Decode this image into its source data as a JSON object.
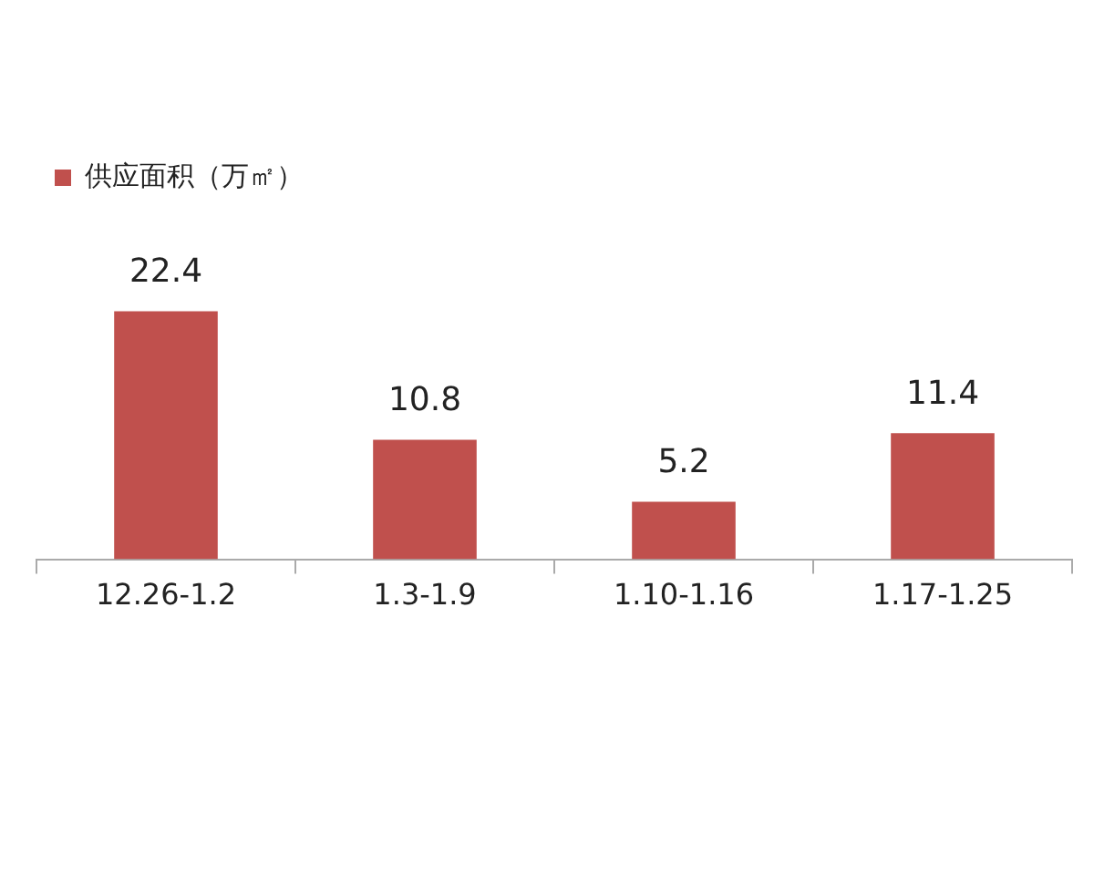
{
  "chart_data": {
    "type": "bar",
    "categories": [
      "12.26-1.2",
      "1.3-1.9",
      "1.10-1.16",
      "1.17-1.25"
    ],
    "series": [
      {
        "name": "供应面积（万㎡）",
        "color": "#c0504d",
        "values": [
          22.4,
          10.8,
          5.2,
          11.4
        ]
      }
    ],
    "data_labels": true,
    "legend": "top left",
    "grid": false
  }
}
